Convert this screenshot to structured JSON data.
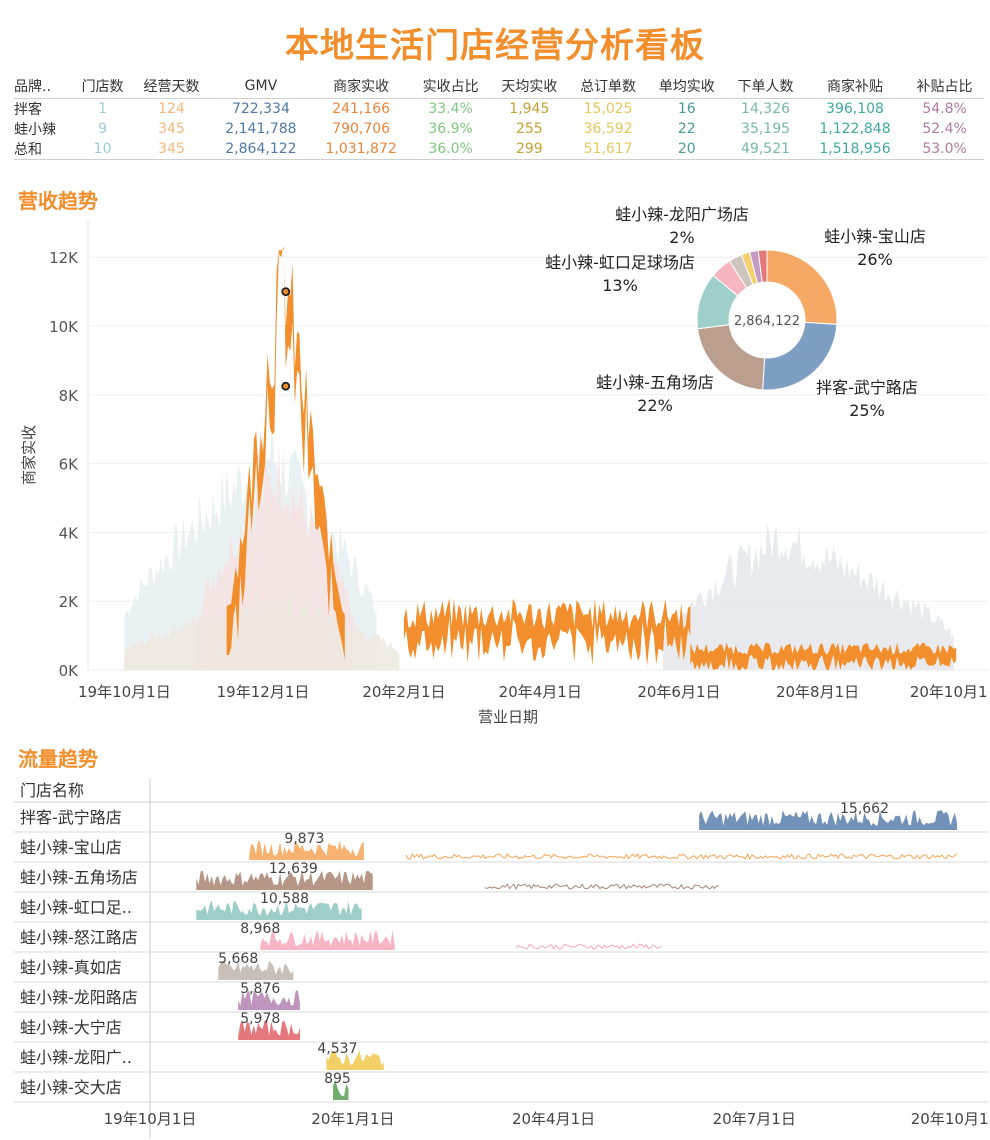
{
  "dashboard": {
    "title": "本地生活门店经营分析看板"
  },
  "kpi": {
    "headers": [
      "品牌..",
      "门店数",
      "经营天数",
      "GMV",
      "商家实收",
      "实收占比",
      "天均实收",
      "总订单数",
      "单均实收",
      "下单人数",
      "商家补贴",
      "补贴占比"
    ],
    "column_colors": [
      "#333333",
      "#9ecae1",
      "#f5b77a",
      "#4e79a7",
      "#e8863a",
      "#7fc97f",
      "#c8a032",
      "#e8c75a",
      "#4a9a9a",
      "#76b7b2",
      "#3fa8a0",
      "#b07aa1"
    ],
    "rows": [
      [
        "拌客",
        "1",
        "124",
        "722,334",
        "241,166",
        "33.4%",
        "1,945",
        "15,025",
        "16",
        "14,326",
        "396,108",
        "54.8%"
      ],
      [
        "蛙小辣",
        "9",
        "345",
        "2,141,788",
        "790,706",
        "36.9%",
        "255",
        "36,592",
        "22",
        "35,195",
        "1,122,848",
        "52.4%"
      ],
      [
        "总和",
        "10",
        "345",
        "2,864,122",
        "1,031,872",
        "36.0%",
        "299",
        "51,617",
        "20",
        "49,521",
        "1,518,956",
        "53.0%"
      ]
    ]
  },
  "revenue_section": {
    "title": "营收趋势"
  },
  "traffic_section": {
    "title": "流量趋势"
  },
  "chart_data": [
    {
      "type": "area",
      "ylabel": "商家实收",
      "xlabel": "营业日期",
      "ylim": [
        0,
        12500
      ],
      "y_ticks": [
        0,
        2000,
        4000,
        6000,
        8000,
        10000,
        12000
      ],
      "y_tick_labels": [
        "0K",
        "2K",
        "4K",
        "6K",
        "8K",
        "10K",
        "12K"
      ],
      "x_tick_labels": [
        "19年10月1日",
        "19年12月1日",
        "20年2月1日",
        "20年4月1日",
        "20年6月1日",
        "20年8月1日",
        "20年10月1日"
      ],
      "x_tick_dates": [
        "2019-10-01",
        "2019-12-01",
        "2020-02-01",
        "2020-04-01",
        "2020-06-01",
        "2020-08-01",
        "2020-10-01"
      ],
      "xlim": [
        "2019-09-15",
        "2020-10-15"
      ],
      "grid": true,
      "highlight_color": "#F28E2B",
      "highlight_series": [
        {
          "start": "2019-11-15",
          "end": "2020-01-06",
          "peak": "2019-12-10",
          "low": 1800,
          "high": 12200,
          "band": 1400
        },
        {
          "start": "2020-02-01",
          "end": "2020-06-06",
          "low": 400,
          "high": 2100,
          "band": 900
        },
        {
          "start": "2020-06-06",
          "end": "2020-10-01",
          "low": 150,
          "high": 800,
          "band": 500
        }
      ],
      "markers": [
        {
          "date": "2019-12-11",
          "value": 11000
        },
        {
          "date": "2019-12-11",
          "value": 8250
        }
      ],
      "background_series": [
        {
          "color": "#e6eef0",
          "start": "2019-10-01",
          "end": "2020-01-20",
          "peak": "2019-12-05",
          "high": 6800
        },
        {
          "color": "#f6e2e2",
          "start": "2019-11-01",
          "end": "2020-01-10",
          "peak": "2019-12-08",
          "high": 6200
        },
        {
          "color": "#efe8e0",
          "start": "2019-10-01",
          "end": "2020-01-30",
          "peak": "2019-12-05",
          "high": 2300
        },
        {
          "color": "#e4e6ea",
          "start": "2020-05-25",
          "end": "2020-09-30",
          "peak": "2020-07-15",
          "high": 4200
        }
      ]
    },
    {
      "type": "pie",
      "center_label": "2,864,122",
      "slices": [
        {
          "name": "蛙小辣-宝山店",
          "share": 26,
          "color": "#F5A965",
          "label": "26%"
        },
        {
          "name": "拌客-武宁路店",
          "share": 25,
          "color": "#7F9EC3",
          "label": "25%"
        },
        {
          "name": "蛙小辣-五角场店",
          "share": 22,
          "color": "#BA9E8E",
          "label": "22%"
        },
        {
          "name": "蛙小辣-虹口足球场店",
          "share": 13,
          "color": "#9FCFCB",
          "label": "13%"
        },
        {
          "name": "蛙小辣-怒江路店",
          "share": 5,
          "color": "#F7B5C0",
          "label": ""
        },
        {
          "name": "蛙小辣-真如店",
          "share": 3,
          "color": "#CCC4BD",
          "label": ""
        },
        {
          "name": "蛙小辣-龙阳广场店",
          "share": 2,
          "color": "#F4D06F",
          "label": "2%"
        },
        {
          "name": "蛙小辣-龙阳路店",
          "share": 2,
          "color": "#C49BC4",
          "label": ""
        },
        {
          "name": "蛙小辣-大宁店",
          "share": 2,
          "color": "#E3787A",
          "label": ""
        }
      ]
    },
    {
      "type": "area",
      "row_header": "门店名称",
      "x_tick_labels": [
        "19年10月1日",
        "20年1月1日",
        "20年4月1日",
        "20年7月1日",
        "20年10月1日"
      ],
      "x_tick_dates": [
        "2019-10-01",
        "2020-01-01",
        "2020-04-01",
        "2020-07-01",
        "2020-10-01"
      ],
      "xlim": [
        "2019-10-01",
        "2020-10-15"
      ],
      "rows": [
        {
          "name": "拌客-武宁路店",
          "color": "#5B7FAD",
          "max_label": "15,662",
          "max_date": "2020-08-20",
          "segments": [
            [
              "2020-06-06",
              "2020-10-01"
            ]
          ]
        },
        {
          "name": "蛙小辣-宝山店",
          "color": "#F5A455",
          "max_label": "9,873",
          "max_date": "2019-12-10",
          "segments": [
            [
              "2019-11-15",
              "2020-01-06"
            ],
            [
              "2020-01-25",
              "2020-10-01"
            ]
          ]
        },
        {
          "name": "蛙小辣-五角场店",
          "color": "#A98572",
          "max_label": "12,639",
          "max_date": "2019-12-05",
          "segments": [
            [
              "2019-10-22",
              "2020-01-10"
            ],
            [
              "2020-03-01",
              "2020-06-15"
            ]
          ]
        },
        {
          "name": "蛙小辣-虹口足..",
          "color": "#8CC5C0",
          "max_label": "10,588",
          "max_date": "2019-12-01",
          "segments": [
            [
              "2019-10-22",
              "2020-01-05"
            ]
          ]
        },
        {
          "name": "蛙小辣-怒江路店",
          "color": "#F7A8B8",
          "max_label": "8,968",
          "max_date": "2019-11-20",
          "segments": [
            [
              "2019-11-20",
              "2020-01-20"
            ],
            [
              "2020-03-15",
              "2020-05-20"
            ]
          ]
        },
        {
          "name": "蛙小辣-真如店",
          "color": "#BDB4AB",
          "max_label": "5,668",
          "max_date": "2019-11-10",
          "segments": [
            [
              "2019-11-01",
              "2019-12-05"
            ]
          ]
        },
        {
          "name": "蛙小辣-龙阳路店",
          "color": "#B283B2",
          "max_label": "5,876",
          "max_date": "2019-11-20",
          "segments": [
            [
              "2019-11-10",
              "2019-12-08"
            ]
          ]
        },
        {
          "name": "蛙小辣-大宁店",
          "color": "#E06066",
          "max_label": "5,978",
          "max_date": "2019-11-20",
          "segments": [
            [
              "2019-11-10",
              "2019-12-08"
            ]
          ]
        },
        {
          "name": "蛙小辣-龙阳广..",
          "color": "#F0C84A",
          "max_label": "4,537",
          "max_date": "2019-12-25",
          "segments": [
            [
              "2019-12-20",
              "2020-01-15"
            ]
          ]
        },
        {
          "name": "蛙小辣-交大店",
          "color": "#58A055",
          "max_label": "895",
          "max_date": "2019-12-25",
          "segments": [
            [
              "2019-12-23",
              "2019-12-30"
            ]
          ]
        }
      ]
    }
  ]
}
